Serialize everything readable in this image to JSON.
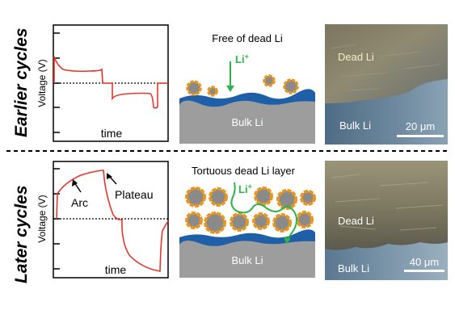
{
  "rows": {
    "top_label": "Earlier cycles",
    "bottom_label": "Later cycles"
  },
  "top_plot": {
    "ylabel": "Voltage (V)",
    "xlabel": "time"
  },
  "bottom_plot": {
    "ylabel": "Voltage (V)",
    "xlabel": "time",
    "arc_label": "Arc",
    "plateau_label": "Plateau"
  },
  "top_schematic": {
    "caption": "Free of dead Li",
    "ion": "Li",
    "ion_charge": "+",
    "bulk": "Bulk Li"
  },
  "bottom_schematic": {
    "caption": "Tortuous dead Li layer",
    "ion": "Li",
    "ion_charge": "+",
    "bulk": "Bulk Li"
  },
  "top_sem": {
    "dead_label": "Dead Li",
    "bulk_label": "Bulk Li",
    "scale": "20 μm"
  },
  "bottom_sem": {
    "dead_label": "Dead Li",
    "bulk_label": "Bulk Li",
    "scale": "40 μm"
  },
  "colors": {
    "curve": "#e8352a",
    "ion_path": "#2db34a",
    "dead_li_outline": "#e8961e",
    "dead_li_core": "#8a8a8a",
    "sei": "#1f5fa8",
    "bulk_li": "#9d9d9d"
  }
}
